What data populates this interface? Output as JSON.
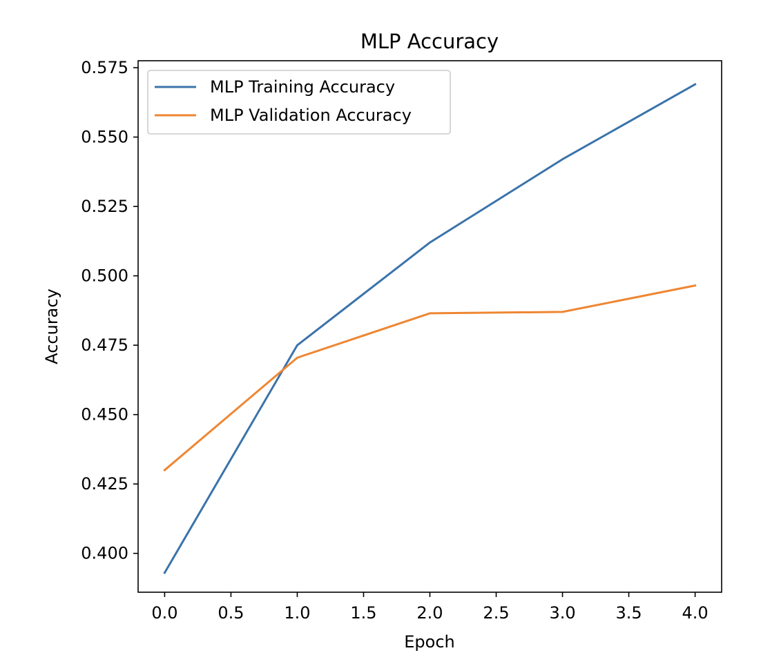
{
  "chart_data": {
    "type": "line",
    "title": "MLP Accuracy",
    "xlabel": "Epoch",
    "ylabel": "Accuracy",
    "x": [
      0,
      1,
      2,
      3,
      4
    ],
    "xlim": [
      -0.2,
      4.2
    ],
    "ylim": [
      0.386,
      0.5775
    ],
    "xticks": [
      0.0,
      0.5,
      1.0,
      1.5,
      2.0,
      2.5,
      3.0,
      3.5,
      4.0
    ],
    "xtick_labels": [
      "0.0",
      "0.5",
      "1.0",
      "1.5",
      "2.0",
      "2.5",
      "3.0",
      "3.5",
      "4.0"
    ],
    "yticks": [
      0.4,
      0.425,
      0.45,
      0.475,
      0.5,
      0.525,
      0.55,
      0.575
    ],
    "ytick_labels": [
      "0.400",
      "0.425",
      "0.450",
      "0.475",
      "0.500",
      "0.525",
      "0.550",
      "0.575"
    ],
    "grid": false,
    "legend_position": "top-left",
    "series": [
      {
        "name": "MLP Training Accuracy",
        "color": "#3a73aa",
        "values": [
          0.393,
          0.475,
          0.512,
          0.542,
          0.569
        ]
      },
      {
        "name": "MLP Validation Accuracy",
        "color": "#ee8632",
        "values": [
          0.43,
          0.4705,
          0.4865,
          0.487,
          0.4965
        ]
      }
    ]
  }
}
